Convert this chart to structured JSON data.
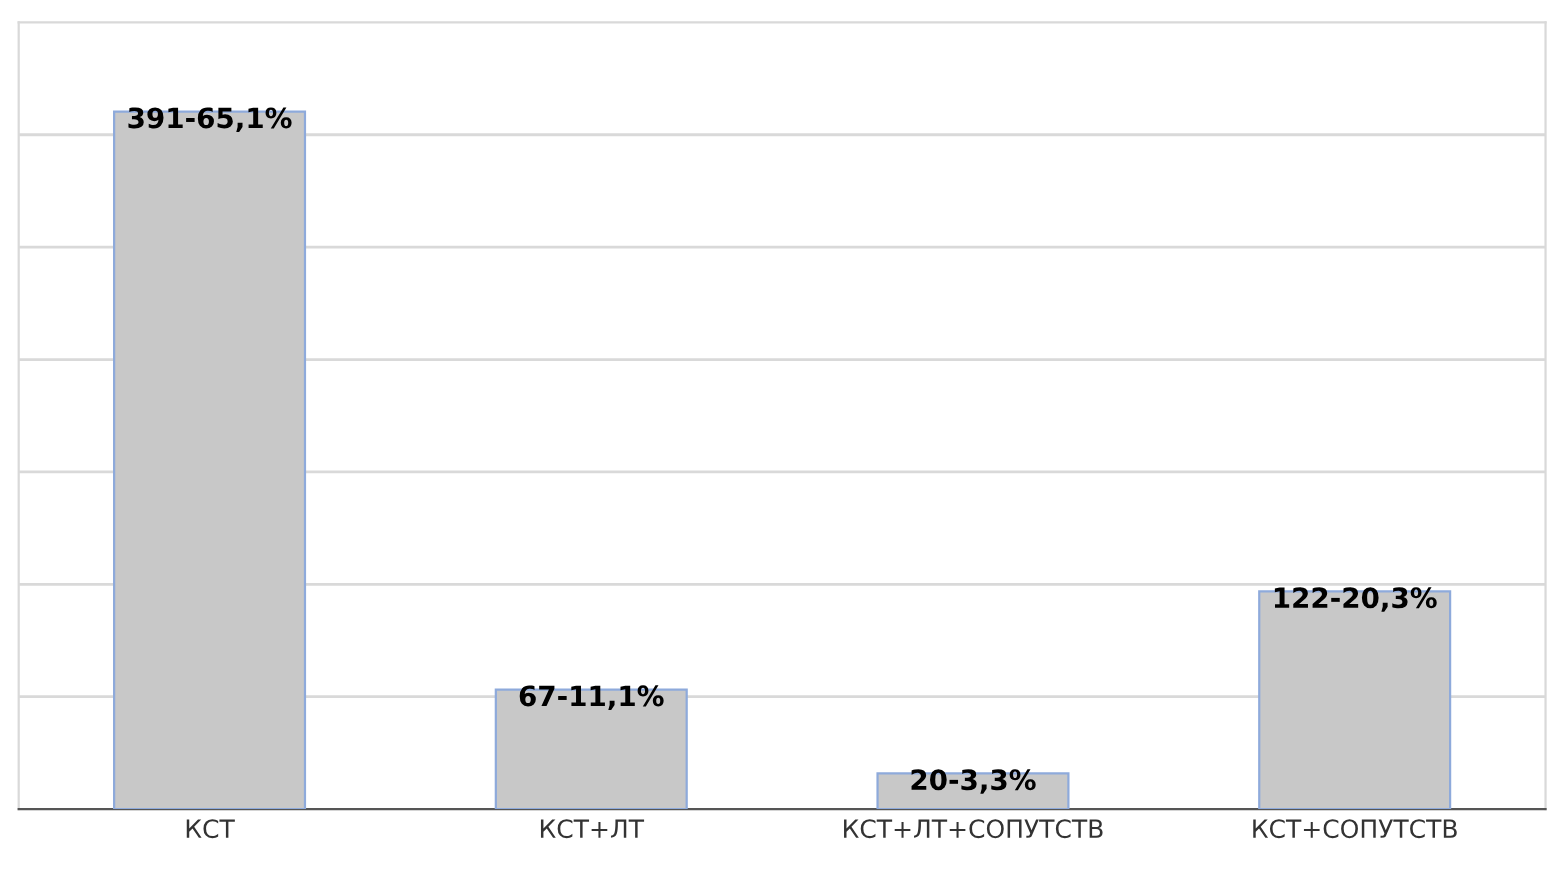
{
  "chart_data": {
    "type": "bar",
    "categories": [
      "КСТ",
      "КСТ+ЛТ",
      "КСТ+ЛТ+СОПУТСТВ",
      "КСТ+СОПУТСТВ"
    ],
    "values": [
      391,
      67,
      20,
      122
    ],
    "value_labels": [
      "391-65,1%",
      "67-11,1%",
      "20-3,3%",
      "122-20,3%"
    ],
    "color": "#c8c8c8",
    "ylim": [
      0,
      441
    ],
    "yticks": [
      {
        "value": 63,
        "label": null
      },
      {
        "value": 126,
        "label": null
      },
      {
        "value": 189,
        "label": null
      },
      {
        "value": 252,
        "label": null
      },
      {
        "value": 315,
        "label": null
      },
      {
        "value": 378,
        "label": null
      }
    ],
    "grid": "y",
    "tick_labels": "x"
  }
}
